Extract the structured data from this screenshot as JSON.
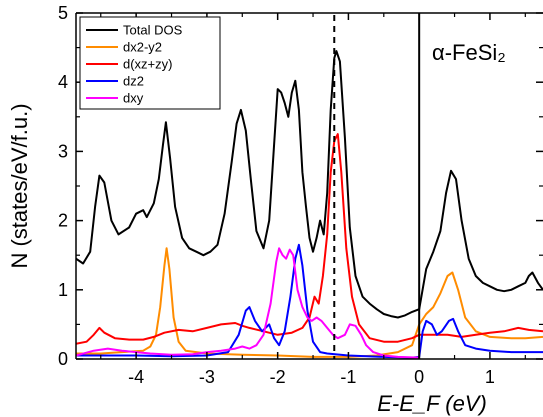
{
  "chart_data": {
    "type": "line",
    "xlabel": "E-E_F (eV)",
    "ylabel": "N (states/eV/f.u.)",
    "xlim": [
      -4.85,
      1.75
    ],
    "ylim": [
      0,
      5
    ],
    "xticks": [
      -4,
      -3,
      -2,
      -1,
      0,
      1
    ],
    "yticks": [
      0,
      1,
      2,
      3,
      4,
      5
    ],
    "annotation": "α-FeSi₂",
    "fermi_level": 0,
    "dashed_line_x": -1.2,
    "legend_position": "top-left",
    "series": [
      {
        "name": "Total DOS",
        "color": "#000000",
        "points": [
          [
            -4.85,
            1.45
          ],
          [
            -4.75,
            1.38
          ],
          [
            -4.65,
            1.55
          ],
          [
            -4.58,
            2.2
          ],
          [
            -4.52,
            2.65
          ],
          [
            -4.45,
            2.55
          ],
          [
            -4.35,
            2.0
          ],
          [
            -4.25,
            1.8
          ],
          [
            -4.1,
            1.9
          ],
          [
            -4.0,
            2.1
          ],
          [
            -3.9,
            2.15
          ],
          [
            -3.85,
            2.05
          ],
          [
            -3.75,
            2.25
          ],
          [
            -3.68,
            2.6
          ],
          [
            -3.62,
            3.1
          ],
          [
            -3.58,
            3.42
          ],
          [
            -3.52,
            2.9
          ],
          [
            -3.45,
            2.2
          ],
          [
            -3.35,
            1.75
          ],
          [
            -3.25,
            1.6
          ],
          [
            -3.15,
            1.55
          ],
          [
            -3.05,
            1.5
          ],
          [
            -2.95,
            1.55
          ],
          [
            -2.85,
            1.65
          ],
          [
            -2.75,
            2.1
          ],
          [
            -2.65,
            2.85
          ],
          [
            -2.58,
            3.4
          ],
          [
            -2.52,
            3.6
          ],
          [
            -2.45,
            3.3
          ],
          [
            -2.38,
            2.6
          ],
          [
            -2.3,
            1.85
          ],
          [
            -2.2,
            1.6
          ],
          [
            -2.12,
            2.0
          ],
          [
            -2.05,
            3.1
          ],
          [
            -2.0,
            3.9
          ],
          [
            -1.95,
            3.85
          ],
          [
            -1.9,
            3.7
          ],
          [
            -1.85,
            3.5
          ],
          [
            -1.8,
            3.85
          ],
          [
            -1.75,
            4.02
          ],
          [
            -1.7,
            3.6
          ],
          [
            -1.65,
            2.7
          ],
          [
            -1.6,
            2.2
          ],
          [
            -1.55,
            1.75
          ],
          [
            -1.5,
            1.55
          ],
          [
            -1.45,
            1.75
          ],
          [
            -1.4,
            2.0
          ],
          [
            -1.35,
            1.8
          ],
          [
            -1.3,
            2.4
          ],
          [
            -1.25,
            3.6
          ],
          [
            -1.2,
            4.35
          ],
          [
            -1.17,
            4.45
          ],
          [
            -1.12,
            4.3
          ],
          [
            -1.05,
            3.2
          ],
          [
            -0.98,
            1.9
          ],
          [
            -0.9,
            1.2
          ],
          [
            -0.8,
            0.9
          ],
          [
            -0.7,
            0.8
          ],
          [
            -0.6,
            0.72
          ],
          [
            -0.5,
            0.65
          ],
          [
            -0.4,
            0.62
          ],
          [
            -0.3,
            0.6
          ],
          [
            -0.2,
            0.63
          ],
          [
            -0.1,
            0.68
          ],
          [
            0.0,
            0.72
          ],
          [
            0.1,
            1.3
          ],
          [
            0.2,
            1.55
          ],
          [
            0.3,
            1.85
          ],
          [
            0.38,
            2.4
          ],
          [
            0.45,
            2.72
          ],
          [
            0.52,
            2.6
          ],
          [
            0.6,
            2.0
          ],
          [
            0.7,
            1.45
          ],
          [
            0.8,
            1.2
          ],
          [
            0.9,
            1.1
          ],
          [
            1.0,
            1.05
          ],
          [
            1.1,
            1.0
          ],
          [
            1.2,
            0.98
          ],
          [
            1.3,
            1.0
          ],
          [
            1.4,
            1.05
          ],
          [
            1.5,
            1.1
          ],
          [
            1.55,
            1.2
          ],
          [
            1.6,
            1.25
          ],
          [
            1.68,
            1.1
          ],
          [
            1.75,
            1.0
          ]
        ]
      },
      {
        "name": "dx2-y2",
        "color": "#ff8c00",
        "points": [
          [
            -4.85,
            0.08
          ],
          [
            -4.5,
            0.08
          ],
          [
            -4.2,
            0.1
          ],
          [
            -3.9,
            0.12
          ],
          [
            -3.8,
            0.18
          ],
          [
            -3.72,
            0.35
          ],
          [
            -3.66,
            0.75
          ],
          [
            -3.6,
            1.35
          ],
          [
            -3.57,
            1.6
          ],
          [
            -3.53,
            1.3
          ],
          [
            -3.47,
            0.6
          ],
          [
            -3.4,
            0.25
          ],
          [
            -3.3,
            0.12
          ],
          [
            -3.0,
            0.08
          ],
          [
            -2.5,
            0.06
          ],
          [
            -2.0,
            0.05
          ],
          [
            -1.5,
            0.03
          ],
          [
            -1.0,
            0.03
          ],
          [
            -0.6,
            0.05
          ],
          [
            -0.3,
            0.1
          ],
          [
            -0.1,
            0.2
          ],
          [
            0.0,
            0.5
          ],
          [
            0.1,
            0.65
          ],
          [
            0.2,
            0.75
          ],
          [
            0.3,
            0.95
          ],
          [
            0.4,
            1.2
          ],
          [
            0.47,
            1.25
          ],
          [
            0.55,
            1.0
          ],
          [
            0.65,
            0.6
          ],
          [
            0.8,
            0.4
          ],
          [
            1.0,
            0.32
          ],
          [
            1.3,
            0.3
          ],
          [
            1.5,
            0.3
          ],
          [
            1.75,
            0.32
          ]
        ]
      },
      {
        "name": "d(xz+zy)",
        "color": "#ff0000",
        "points": [
          [
            -4.85,
            0.22
          ],
          [
            -4.7,
            0.25
          ],
          [
            -4.6,
            0.35
          ],
          [
            -4.52,
            0.45
          ],
          [
            -4.45,
            0.38
          ],
          [
            -4.3,
            0.3
          ],
          [
            -4.1,
            0.28
          ],
          [
            -3.9,
            0.28
          ],
          [
            -3.75,
            0.32
          ],
          [
            -3.6,
            0.38
          ],
          [
            -3.4,
            0.42
          ],
          [
            -3.2,
            0.4
          ],
          [
            -3.0,
            0.45
          ],
          [
            -2.8,
            0.5
          ],
          [
            -2.6,
            0.52
          ],
          [
            -2.5,
            0.48
          ],
          [
            -2.4,
            0.45
          ],
          [
            -2.2,
            0.4
          ],
          [
            -2.0,
            0.35
          ],
          [
            -1.8,
            0.38
          ],
          [
            -1.65,
            0.45
          ],
          [
            -1.55,
            0.6
          ],
          [
            -1.48,
            0.9
          ],
          [
            -1.42,
            0.8
          ],
          [
            -1.36,
            1.2
          ],
          [
            -1.3,
            1.8
          ],
          [
            -1.25,
            2.7
          ],
          [
            -1.2,
            3.15
          ],
          [
            -1.15,
            3.25
          ],
          [
            -1.1,
            2.7
          ],
          [
            -1.03,
            1.6
          ],
          [
            -0.95,
            0.9
          ],
          [
            -0.85,
            0.5
          ],
          [
            -0.7,
            0.3
          ],
          [
            -0.5,
            0.25
          ],
          [
            -0.3,
            0.25
          ],
          [
            -0.1,
            0.3
          ],
          [
            0.0,
            0.35
          ],
          [
            0.2,
            0.35
          ],
          [
            0.4,
            0.35
          ],
          [
            0.6,
            0.32
          ],
          [
            0.8,
            0.35
          ],
          [
            1.0,
            0.38
          ],
          [
            1.2,
            0.4
          ],
          [
            1.4,
            0.45
          ],
          [
            1.55,
            0.42
          ],
          [
            1.75,
            0.4
          ]
        ]
      },
      {
        "name": "dz2",
        "color": "#0000ff",
        "points": [
          [
            -4.85,
            0.05
          ],
          [
            -4.5,
            0.05
          ],
          [
            -4.0,
            0.05
          ],
          [
            -3.5,
            0.04
          ],
          [
            -3.0,
            0.05
          ],
          [
            -2.7,
            0.1
          ],
          [
            -2.55,
            0.35
          ],
          [
            -2.45,
            0.7
          ],
          [
            -2.4,
            0.75
          ],
          [
            -2.32,
            0.55
          ],
          [
            -2.22,
            0.4
          ],
          [
            -2.12,
            0.5
          ],
          [
            -2.05,
            0.3
          ],
          [
            -1.98,
            0.2
          ],
          [
            -1.9,
            0.4
          ],
          [
            -1.82,
            0.9
          ],
          [
            -1.75,
            1.45
          ],
          [
            -1.7,
            1.65
          ],
          [
            -1.65,
            1.35
          ],
          [
            -1.58,
            0.7
          ],
          [
            -1.5,
            0.25
          ],
          [
            -1.4,
            0.1
          ],
          [
            -1.3,
            0.08
          ],
          [
            -1.0,
            0.05
          ],
          [
            -0.5,
            0.03
          ],
          [
            -0.1,
            0.02
          ],
          [
            0.0,
            0.03
          ],
          [
            0.05,
            0.4
          ],
          [
            0.1,
            0.55
          ],
          [
            0.18,
            0.5
          ],
          [
            0.25,
            0.35
          ],
          [
            0.32,
            0.4
          ],
          [
            0.42,
            0.55
          ],
          [
            0.48,
            0.58
          ],
          [
            0.55,
            0.4
          ],
          [
            0.65,
            0.2
          ],
          [
            0.8,
            0.15
          ],
          [
            1.0,
            0.12
          ],
          [
            1.3,
            0.1
          ],
          [
            1.5,
            0.1
          ],
          [
            1.75,
            0.1
          ]
        ]
      },
      {
        "name": "dxy",
        "color": "#ff00ff",
        "points": [
          [
            -4.85,
            0.05
          ],
          [
            -4.6,
            0.12
          ],
          [
            -4.4,
            0.15
          ],
          [
            -4.2,
            0.12
          ],
          [
            -4.0,
            0.1
          ],
          [
            -3.8,
            0.08
          ],
          [
            -3.5,
            0.06
          ],
          [
            -3.2,
            0.07
          ],
          [
            -3.0,
            0.1
          ],
          [
            -2.8,
            0.12
          ],
          [
            -2.6,
            0.15
          ],
          [
            -2.5,
            0.18
          ],
          [
            -2.4,
            0.15
          ],
          [
            -2.3,
            0.2
          ],
          [
            -2.2,
            0.35
          ],
          [
            -2.1,
            0.8
          ],
          [
            -2.02,
            1.4
          ],
          [
            -1.98,
            1.6
          ],
          [
            -1.93,
            1.5
          ],
          [
            -1.88,
            1.45
          ],
          [
            -1.83,
            1.58
          ],
          [
            -1.78,
            1.5
          ],
          [
            -1.72,
            1.0
          ],
          [
            -1.65,
            0.75
          ],
          [
            -1.58,
            0.6
          ],
          [
            -1.52,
            0.55
          ],
          [
            -1.45,
            0.6
          ],
          [
            -1.38,
            0.55
          ],
          [
            -1.3,
            0.45
          ],
          [
            -1.22,
            0.35
          ],
          [
            -1.15,
            0.3
          ],
          [
            -1.05,
            0.35
          ],
          [
            -0.98,
            0.5
          ],
          [
            -0.9,
            0.48
          ],
          [
            -0.82,
            0.35
          ],
          [
            -0.75,
            0.2
          ],
          [
            -0.65,
            0.1
          ],
          [
            -0.5,
            0.05
          ],
          [
            -0.3,
            0.03
          ],
          [
            0.0,
            0.02
          ]
        ]
      }
    ]
  }
}
